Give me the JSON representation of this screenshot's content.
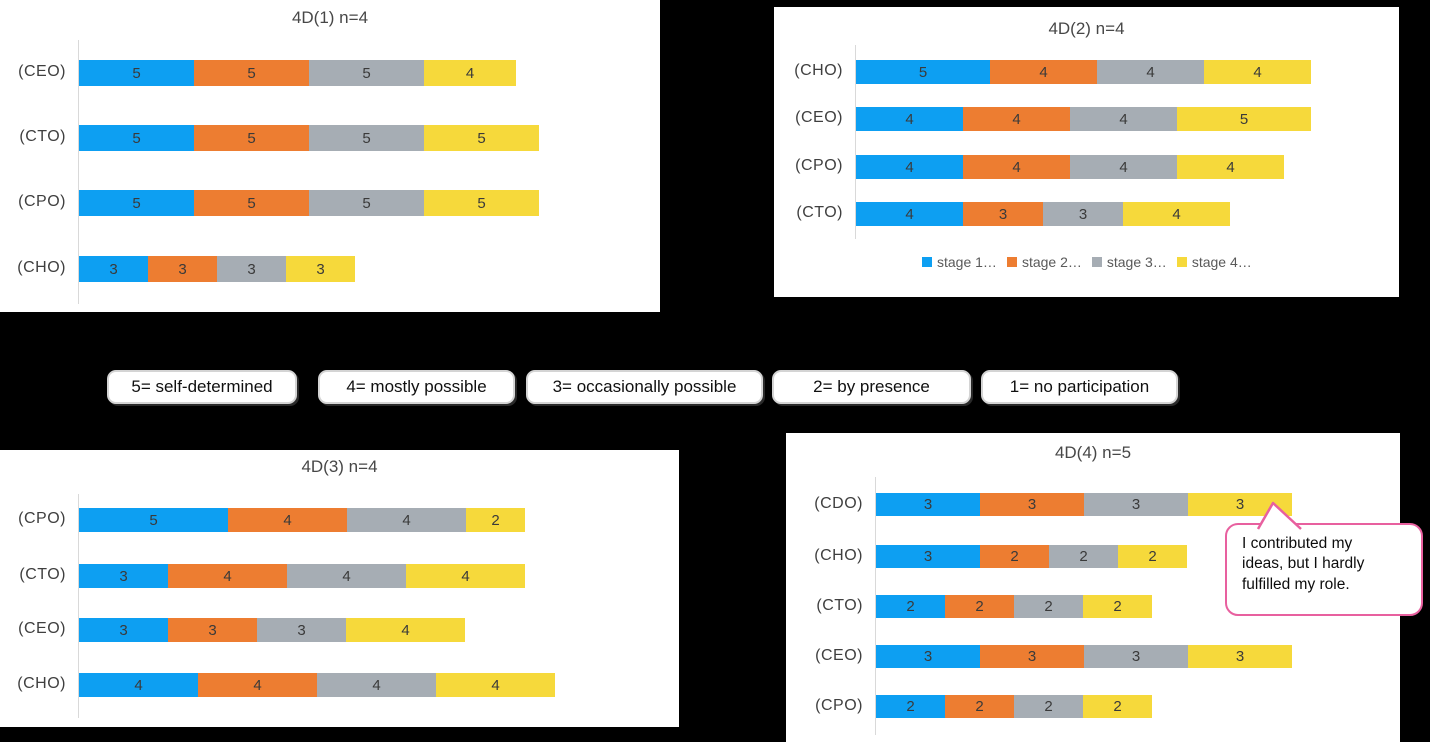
{
  "palette": {
    "series_colors": [
      "#0D9FF2",
      "#ED7D31",
      "#A6ADB4",
      "#F6D93B"
    ],
    "value_label_color": "#3A3A3A",
    "axis_color": "#D9D9D9",
    "bubble_border": "#E8609F",
    "page_background": "#000000",
    "panel_background": "#FFFFFF"
  },
  "score_legend": {
    "items": [
      "5= self-determined",
      "4= mostly possible",
      "3= occasionally possible",
      "2= by presence",
      "1= no participation"
    ]
  },
  "chart_data": [
    {
      "type": "bar",
      "stacked": true,
      "orientation": "horizontal",
      "title": "4D(1) n=4",
      "categories": [
        "(CEO)",
        "(CTO)",
        "(CPO)",
        "(CHO)"
      ],
      "series": [
        {
          "name": "stage 1",
          "values": [
            5,
            5,
            5,
            3
          ]
        },
        {
          "name": "stage 2",
          "values": [
            5,
            5,
            5,
            3
          ]
        },
        {
          "name": "stage 3",
          "values": [
            5,
            5,
            5,
            3
          ]
        },
        {
          "name": "stage 4",
          "values": [
            4,
            5,
            5,
            3
          ]
        }
      ],
      "value_labels": true,
      "legend": null
    },
    {
      "type": "bar",
      "stacked": true,
      "orientation": "horizontal",
      "title": "4D(2) n=4",
      "categories": [
        "(CHO)",
        "(CEO)",
        "(CPO)",
        "(CTO)"
      ],
      "series": [
        {
          "name": "stage 1",
          "values": [
            5,
            4,
            4,
            4
          ]
        },
        {
          "name": "stage 2",
          "values": [
            4,
            4,
            4,
            3
          ]
        },
        {
          "name": "stage 3",
          "values": [
            4,
            4,
            4,
            3
          ]
        },
        {
          "name": "stage 4",
          "values": [
            4,
            5,
            4,
            4
          ]
        }
      ],
      "value_labels": true,
      "legend": {
        "position": "bottom",
        "labels": [
          "stage 1…",
          "stage 2…",
          "stage 3…",
          "stage 4…"
        ]
      }
    },
    {
      "type": "bar",
      "stacked": true,
      "orientation": "horizontal",
      "title": "4D(3) n=4",
      "categories": [
        "(CPO)",
        "(CTO)",
        "(CEO)",
        "(CHO)"
      ],
      "series": [
        {
          "name": "stage 1",
          "values": [
            5,
            3,
            3,
            4
          ]
        },
        {
          "name": "stage 2",
          "values": [
            4,
            4,
            3,
            4
          ]
        },
        {
          "name": "stage 3",
          "values": [
            4,
            4,
            3,
            4
          ]
        },
        {
          "name": "stage 4",
          "values": [
            2,
            4,
            4,
            4
          ]
        }
      ],
      "value_labels": true,
      "legend": null
    },
    {
      "type": "bar",
      "stacked": true,
      "orientation": "horizontal",
      "title": "4D(4) n=5",
      "categories": [
        "(CDO)",
        "(CHO)",
        "(CTO)",
        "(CEO)",
        "(CPO)"
      ],
      "series": [
        {
          "name": "stage 1",
          "values": [
            3,
            3,
            2,
            3,
            2
          ]
        },
        {
          "name": "stage 2",
          "values": [
            3,
            2,
            2,
            3,
            2
          ]
        },
        {
          "name": "stage 3",
          "values": [
            3,
            2,
            2,
            3,
            2
          ]
        },
        {
          "name": "stage 4",
          "values": [
            3,
            2,
            2,
            3,
            2
          ]
        }
      ],
      "value_labels": true,
      "legend": null
    }
  ],
  "annotation": {
    "text": "I contributed my\nideas, but I hardly\nfulfilled my role."
  }
}
